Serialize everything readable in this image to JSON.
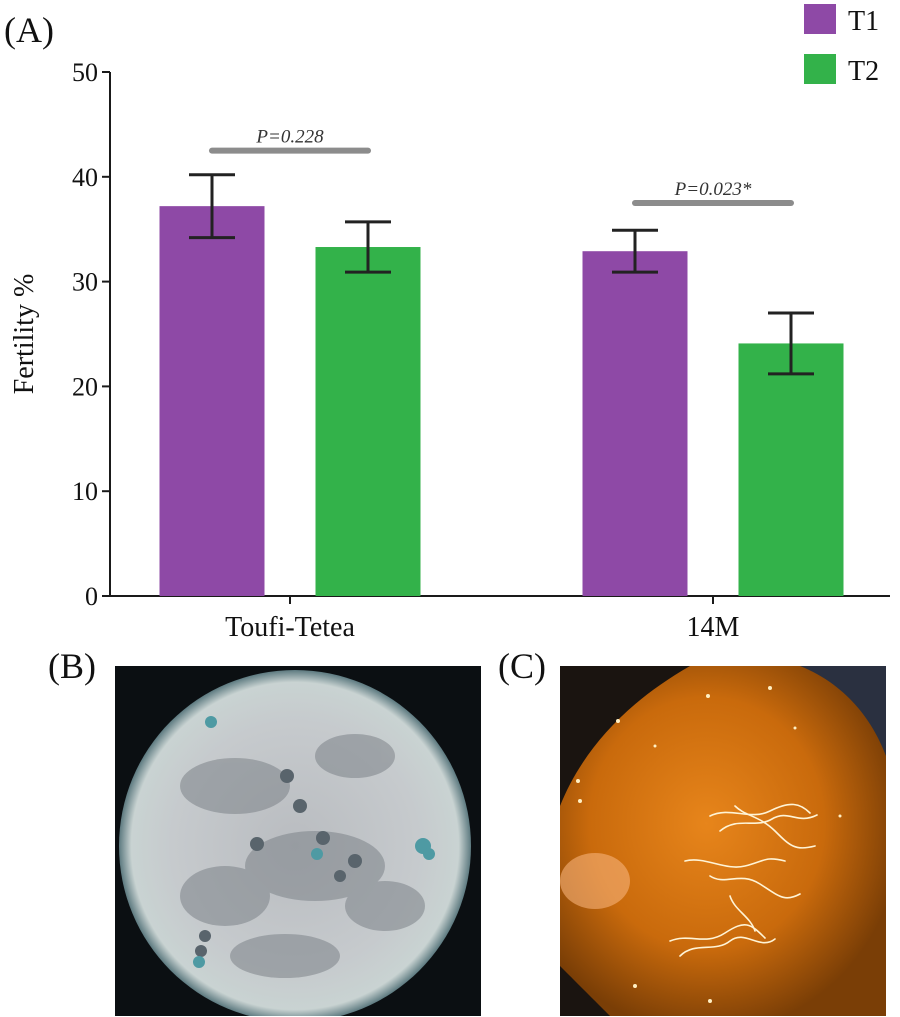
{
  "panels": {
    "a": "(A)",
    "b": "(B)",
    "c": "(C)"
  },
  "colors": {
    "t1": "#8e49a6",
    "t2": "#33b24a",
    "axis": "#1a1a1a",
    "bracket": "#8c8c8c"
  },
  "chart_data": {
    "type": "bar",
    "title": "",
    "xlabel": "",
    "ylabel": "Fertility %",
    "ylim": [
      0,
      50
    ],
    "yticks": [
      0,
      10,
      20,
      30,
      40,
      50
    ],
    "categories": [
      "Toufi-Tetea",
      "14M"
    ],
    "series": [
      {
        "name": "T1",
        "values": [
          37.2,
          32.9
        ],
        "errors": [
          3.0,
          2.0
        ]
      },
      {
        "name": "T2",
        "values": [
          33.3,
          24.1
        ],
        "errors": [
          2.4,
          2.9
        ]
      }
    ],
    "annotations": [
      {
        "category": "Toufi-Tetea",
        "text": "P=0.228",
        "y": 42.5
      },
      {
        "category": "14M",
        "text": "P=0.023*",
        "y": 37.5
      }
    ],
    "legend": {
      "position": "top-right",
      "entries": [
        "T1",
        "T2"
      ]
    }
  }
}
